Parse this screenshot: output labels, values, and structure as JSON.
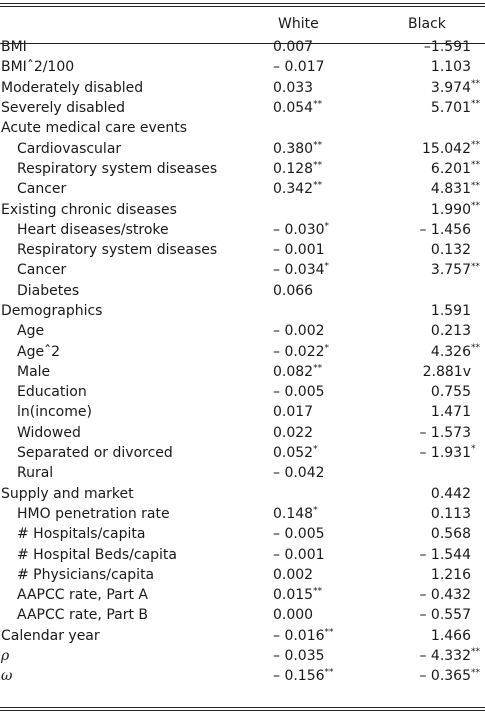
{
  "columns": [
    "White",
    "Black"
  ],
  "rows": [
    {
      "label": "BMI",
      "indent": false,
      "white": "0.007",
      "white_sig": "",
      "black": "–1.591",
      "black_sig": ""
    },
    {
      "label": "BMIˆ2/100",
      "indent": false,
      "white": "– 0.017",
      "white_sig": "",
      "black": "1.103",
      "black_sig": ""
    },
    {
      "label": "Moderately disabled",
      "indent": false,
      "white": "0.033",
      "white_sig": "",
      "black": "3.974",
      "black_sig": "**"
    },
    {
      "label": "Severely disabled",
      "indent": false,
      "white": "0.054",
      "white_sig": "**",
      "black": "5.701",
      "black_sig": "**"
    },
    {
      "label": "Acute medical care events",
      "indent": false,
      "white": "",
      "white_sig": "",
      "black": "",
      "black_sig": ""
    },
    {
      "label": "Cardiovascular",
      "indent": true,
      "white": "0.380",
      "white_sig": "**",
      "black": "15.042",
      "black_sig": "**"
    },
    {
      "label": "Respiratory system diseases",
      "indent": true,
      "white": "0.128",
      "white_sig": "**",
      "black": "6.201",
      "black_sig": "**"
    },
    {
      "label": "Cancer",
      "indent": true,
      "white": "0.342",
      "white_sig": "**",
      "black": "4.831",
      "black_sig": "**"
    },
    {
      "label": "Existing chronic diseases",
      "indent": false,
      "white": "",
      "white_sig": "",
      "black": "1.990",
      "black_sig": "**"
    },
    {
      "label": "Heart diseases/stroke",
      "indent": true,
      "white": "– 0.030",
      "white_sig": "*",
      "black": "– 1.456",
      "black_sig": ""
    },
    {
      "label": "Respiratory system diseases",
      "indent": true,
      "white": "– 0.001",
      "white_sig": "",
      "black": "0.132",
      "black_sig": ""
    },
    {
      "label": "Cancer",
      "indent": true,
      "white": "– 0.034",
      "white_sig": "*",
      "black": "3.757",
      "black_sig": "**"
    },
    {
      "label": "Diabetes",
      "indent": true,
      "white": "0.066",
      "white_sig": "",
      "black": "",
      "black_sig": ""
    },
    {
      "label": "Demographics",
      "indent": false,
      "white": "",
      "white_sig": "",
      "black": "1.591",
      "black_sig": ""
    },
    {
      "label": "Age",
      "indent": true,
      "white": "– 0.002",
      "white_sig": "",
      "black": "0.213",
      "black_sig": ""
    },
    {
      "label": "Ageˆ2",
      "indent": true,
      "white": "– 0.022",
      "white_sig": "*",
      "black": "4.326",
      "black_sig": "**"
    },
    {
      "label": "Male",
      "indent": true,
      "white": "0.082",
      "white_sig": "**",
      "black": "2.881v",
      "black_sig": ""
    },
    {
      "label": "Education",
      "indent": true,
      "white": "– 0.005",
      "white_sig": "",
      "black": "0.755",
      "black_sig": ""
    },
    {
      "label": "ln(income)",
      "indent": true,
      "white": "0.017",
      "white_sig": "",
      "black": "1.471",
      "black_sig": ""
    },
    {
      "label": "Widowed",
      "indent": true,
      "white": "0.022",
      "white_sig": "",
      "black": "– 1.573",
      "black_sig": ""
    },
    {
      "label": "Separated or divorced",
      "indent": true,
      "white": "0.052",
      "white_sig": "*",
      "black": "– 1.931",
      "black_sig": "*"
    },
    {
      "label": "Rural",
      "indent": true,
      "white": "– 0.042",
      "white_sig": "",
      "black": "",
      "black_sig": ""
    },
    {
      "label": "Supply and market",
      "indent": false,
      "white": "",
      "white_sig": "",
      "black": "0.442",
      "black_sig": ""
    },
    {
      "label": "HMO penetration rate",
      "indent": true,
      "white": "0.148",
      "white_sig": "*",
      "black": "0.113",
      "black_sig": ""
    },
    {
      "label": "# Hospitals/capita",
      "indent": true,
      "white": "– 0.005",
      "white_sig": "",
      "black": "0.568",
      "black_sig": ""
    },
    {
      "label": "# Hospital Beds/capita",
      "indent": true,
      "white": "– 0.001",
      "white_sig": "",
      "black": "– 1.544",
      "black_sig": ""
    },
    {
      "label": "# Physicians/capita",
      "indent": true,
      "white": "0.002",
      "white_sig": "",
      "black": "1.216",
      "black_sig": ""
    },
    {
      "label": "AAPCC rate, Part A",
      "indent": true,
      "white": "0.015",
      "white_sig": "**",
      "black": "– 0.432",
      "black_sig": ""
    },
    {
      "label": "AAPCC rate, Part B",
      "indent": true,
      "white": "0.000",
      "white_sig": "",
      "black": "– 0.557",
      "black_sig": ""
    },
    {
      "label": "Calendar year",
      "indent": false,
      "white": "– 0.016",
      "white_sig": "**",
      "black": "1.466",
      "black_sig": ""
    },
    {
      "label": "ρ",
      "indent": false,
      "greek": true,
      "white": "– 0.035",
      "white_sig": "",
      "black": "– 4.332",
      "black_sig": "**"
    },
    {
      "label": "ω",
      "indent": false,
      "greek": true,
      "white": "– 0.156",
      "white_sig": "**",
      "black": "– 0.365",
      "black_sig": "**"
    }
  ]
}
